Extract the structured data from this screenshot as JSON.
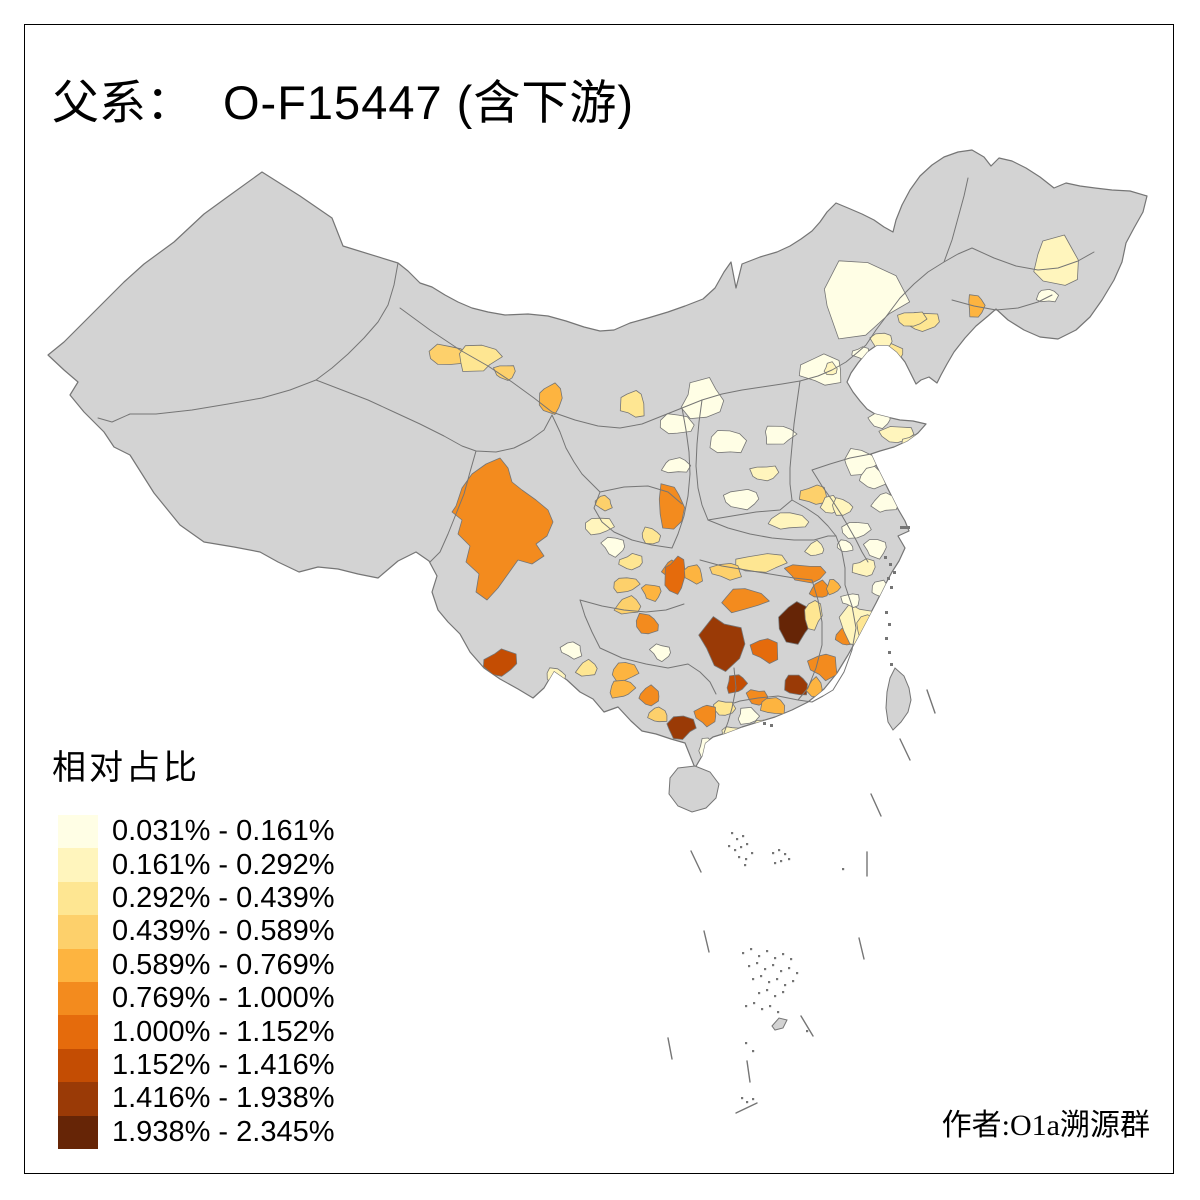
{
  "title": {
    "prefix": "父系：",
    "name": "O-F15447 (含下游)"
  },
  "legend": {
    "title": "相对占比",
    "labels": [
      "0.031% - 0.161%",
      "0.161% - 0.292%",
      "0.292% - 0.439%",
      "0.439% - 0.589%",
      "0.589% - 0.769%",
      "0.769% - 1.000%",
      "1.000% - 1.152%",
      "1.152% - 1.416%",
      "1.416% - 1.938%",
      "1.938% - 2.345%"
    ]
  },
  "attribution": "作者:O1a溯源群",
  "palette": {
    "c1": "#FFFEE5",
    "c2": "#FFF5BD",
    "c3": "#FEE692",
    "c4": "#FDD06B",
    "c5": "#FDB440",
    "c6": "#F38B1E",
    "c7": "#E56B0C",
    "c8": "#C44D03",
    "c9": "#9A3A06",
    "c10": "#662506"
  },
  "map_colors": {
    "land": "#D3D3D3",
    "boundary": "#757575",
    "background": "#FFFFFF",
    "frame": "#000000"
  }
}
